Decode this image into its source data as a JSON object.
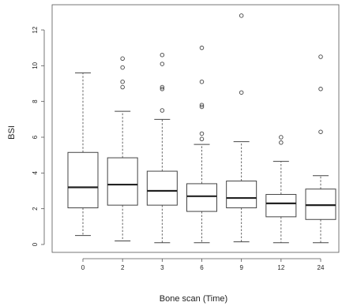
{
  "chart_data": {
    "type": "box",
    "xlabel": "Bone scan (Time)",
    "ylabel": "BSI",
    "categories": [
      "0",
      "2",
      "3",
      "6",
      "9",
      "12",
      "24"
    ],
    "yticks": [
      0,
      2,
      4,
      6,
      8,
      10,
      12
    ],
    "ylim": [
      -0.3,
      13.0
    ],
    "grid": false,
    "boxes": [
      {
        "category": "0",
        "whisker_low": 0.5,
        "q1": 2.05,
        "median": 3.2,
        "q3": 5.15,
        "whisker_high": 9.6,
        "outliers": []
      },
      {
        "category": "2",
        "whisker_low": 0.2,
        "q1": 2.2,
        "median": 3.35,
        "q3": 4.85,
        "whisker_high": 7.45,
        "outliers": [
          8.8,
          9.1,
          9.9,
          10.4
        ]
      },
      {
        "category": "3",
        "whisker_low": 0.1,
        "q1": 2.2,
        "median": 3.0,
        "q3": 4.1,
        "whisker_high": 7.0,
        "outliers": [
          7.5,
          8.7,
          8.8,
          10.1,
          10.6
        ]
      },
      {
        "category": "6",
        "whisker_low": 0.1,
        "q1": 1.85,
        "median": 2.7,
        "q3": 3.4,
        "whisker_high": 5.6,
        "outliers": [
          5.9,
          6.2,
          7.7,
          7.8,
          9.1,
          11.0
        ]
      },
      {
        "category": "9",
        "whisker_low": 0.15,
        "q1": 2.05,
        "median": 2.6,
        "q3": 3.55,
        "whisker_high": 5.75,
        "outliers": [
          8.5,
          12.8
        ]
      },
      {
        "category": "12",
        "whisker_low": 0.1,
        "q1": 1.55,
        "median": 2.3,
        "q3": 2.8,
        "whisker_high": 4.65,
        "outliers": [
          5.7,
          6.0
        ]
      },
      {
        "category": "24",
        "whisker_low": 0.1,
        "q1": 1.4,
        "median": 2.2,
        "q3": 3.1,
        "whisker_high": 3.85,
        "outliers": [
          6.3,
          8.7,
          10.5
        ]
      }
    ]
  }
}
